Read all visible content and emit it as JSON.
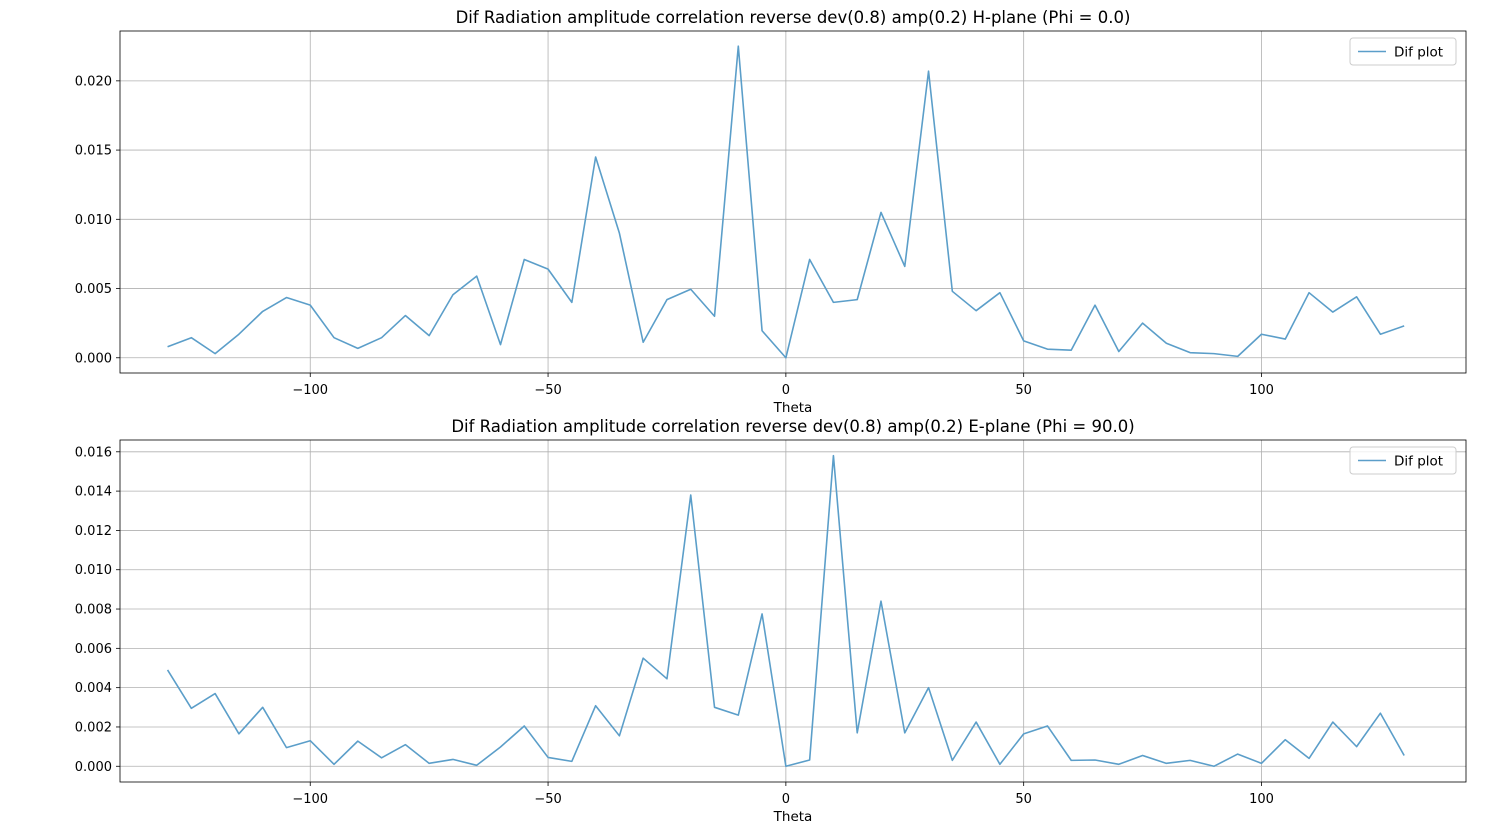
{
  "chart_data": [
    {
      "type": "line",
      "title": "Dif Radiation amplitude correlation reverse dev(0.8) amp(0.2) H-plane (Phi = 0.0)",
      "xlabel": "Theta",
      "ylabel": "",
      "xlim": [
        -140,
        143
      ],
      "ylim": [
        -0.0011,
        0.0236
      ],
      "xticks": [
        -100,
        -50,
        0,
        50,
        100
      ],
      "xtick_labels": [
        "−100",
        "−50",
        "0",
        "50",
        "100"
      ],
      "yticks": [
        0.0,
        0.005,
        0.01,
        0.015,
        0.02
      ],
      "ytick_labels": [
        "0.000",
        "0.005",
        "0.010",
        "0.015",
        "0.020"
      ],
      "grid": true,
      "legend_position": "top-right",
      "series": [
        {
          "name": "Dif plot",
          "color": "#5b9ec9",
          "x": [
            -130,
            -125,
            -120,
            -115,
            -110,
            -105,
            -100,
            -95,
            -90,
            -85,
            -80,
            -75,
            -70,
            -65,
            -60,
            -55,
            -50,
            -45,
            -40,
            -35,
            -30,
            -25,
            -20,
            -15,
            -10,
            -5,
            0,
            5,
            10,
            15,
            20,
            25,
            30,
            35,
            40,
            45,
            50,
            55,
            60,
            65,
            70,
            75,
            80,
            85,
            90,
            95,
            100,
            105,
            110,
            115,
            120,
            125,
            130
          ],
          "values": [
            0.0008,
            0.00145,
            0.0003,
            0.0017,
            0.00335,
            0.00435,
            0.0038,
            0.00145,
            0.00068,
            0.00145,
            0.00305,
            0.0016,
            0.00455,
            0.0059,
            0.00095,
            0.0071,
            0.0064,
            0.004,
            0.0145,
            0.009,
            0.00112,
            0.0042,
            0.00495,
            0.003,
            0.0225,
            0.00195,
            0.0,
            0.0071,
            0.004,
            0.0042,
            0.0105,
            0.0066,
            0.0207,
            0.0048,
            0.0034,
            0.0047,
            0.00122,
            0.00062,
            0.00055,
            0.0038,
            0.00045,
            0.0025,
            0.00105,
            0.00037,
            0.0003,
            0.0001,
            0.0017,
            0.00135,
            0.0047,
            0.0033,
            0.0044,
            0.0017,
            0.0023
          ]
        }
      ]
    },
    {
      "type": "line",
      "title": "Dif Radiation amplitude correlation reverse dev(0.8) amp(0.2) E-plane (Phi = 90.0)",
      "xlabel": "Theta",
      "ylabel": "",
      "xlim": [
        -140,
        143
      ],
      "ylim": [
        -0.0008,
        0.0166
      ],
      "xticks": [
        -100,
        -50,
        0,
        50,
        100
      ],
      "xtick_labels": [
        "−100",
        "−50",
        "0",
        "50",
        "100"
      ],
      "yticks": [
        0.0,
        0.002,
        0.004,
        0.006,
        0.008,
        0.01,
        0.012,
        0.014,
        0.016
      ],
      "ytick_labels": [
        "0.000",
        "0.002",
        "0.004",
        "0.006",
        "0.008",
        "0.010",
        "0.012",
        "0.014",
        "0.016"
      ],
      "grid": true,
      "legend_position": "top-right",
      "series": [
        {
          "name": "Dif plot",
          "color": "#5b9ec9",
          "x": [
            -130,
            -125,
            -120,
            -115,
            -110,
            -105,
            -100,
            -95,
            -90,
            -85,
            -80,
            -75,
            -70,
            -65,
            -60,
            -55,
            -50,
            -45,
            -40,
            -35,
            -30,
            -25,
            -20,
            -15,
            -10,
            -5,
            0,
            5,
            10,
            15,
            20,
            25,
            30,
            35,
            40,
            45,
            50,
            55,
            60,
            65,
            70,
            75,
            80,
            85,
            90,
            95,
            100,
            105,
            110,
            115,
            120,
            125,
            130
          ],
          "values": [
            0.0049,
            0.00295,
            0.0037,
            0.00165,
            0.003,
            0.00095,
            0.0013,
            0.0001,
            0.00128,
            0.00043,
            0.0011,
            0.00015,
            0.00035,
            5e-05,
            0.00098,
            0.00205,
            0.00045,
            0.00025,
            0.00308,
            0.00155,
            0.0055,
            0.00445,
            0.0138,
            0.003,
            0.0026,
            0.00775,
            0.0,
            0.00032,
            0.0158,
            0.0017,
            0.0084,
            0.0017,
            0.004,
            0.0003,
            0.00225,
            0.0001,
            0.00165,
            0.00205,
            0.0003,
            0.00032,
            0.0001,
            0.00055,
            0.00015,
            0.0003,
            0.0,
            0.00062,
            0.00015,
            0.00135,
            0.0004,
            0.00225,
            0.001,
            0.0027,
            0.00055
          ]
        }
      ]
    }
  ]
}
